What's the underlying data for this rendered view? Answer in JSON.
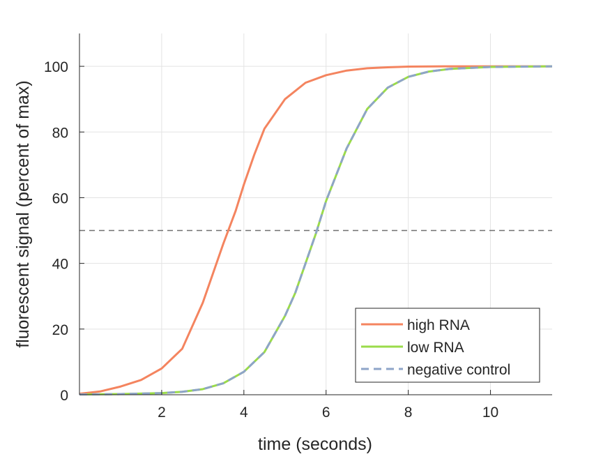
{
  "chart_data": {
    "type": "line",
    "xlabel": "time (seconds)",
    "ylabel": "fluorescent signal (percent of max)",
    "xlim": [
      0,
      11.5
    ],
    "ylim": [
      0,
      110
    ],
    "xticks": [
      2,
      4,
      6,
      8,
      10
    ],
    "yticks": [
      0,
      20,
      40,
      60,
      80,
      100
    ],
    "grid": true,
    "legend_position": "bottom-right",
    "threshold": {
      "y": 50,
      "color": "#707070",
      "style": "dashed"
    },
    "series": [
      {
        "name": "high RNA",
        "color": "#F4845F",
        "style": "solid",
        "x": [
          0,
          0.5,
          1,
          1.5,
          2,
          2.5,
          3,
          3.25,
          3.5,
          3.65,
          3.8,
          4,
          4.25,
          4.5,
          5,
          5.5,
          6,
          6.5,
          7,
          7.5,
          8,
          9,
          10,
          11.5
        ],
        "y": [
          0.3,
          1.0,
          2.5,
          4.5,
          8,
          14,
          28,
          37,
          46,
          51,
          56,
          64,
          73,
          81,
          90,
          95,
          97.3,
          98.7,
          99.4,
          99.7,
          99.9,
          100,
          100,
          100
        ]
      },
      {
        "name": "low RNA",
        "color": "#9ADB4A",
        "style": "solid",
        "x": [
          0,
          1,
          2,
          2.5,
          3,
          3.5,
          4,
          4.5,
          5,
          5.25,
          5.5,
          5.75,
          6,
          6.25,
          6.5,
          7,
          7.5,
          8,
          8.5,
          9,
          10,
          11.5
        ],
        "y": [
          0.1,
          0.2,
          0.5,
          0.9,
          1.7,
          3.5,
          7,
          13,
          24,
          31,
          40,
          49,
          59,
          67,
          75,
          87,
          93.5,
          96.8,
          98.4,
          99.2,
          99.8,
          100
        ]
      },
      {
        "name": "negative control",
        "color": "#8EA4C8",
        "style": "dashed",
        "x": [
          0,
          1,
          2,
          2.5,
          3,
          3.5,
          4,
          4.5,
          5,
          5.25,
          5.5,
          5.75,
          6,
          6.25,
          6.5,
          7,
          7.5,
          8,
          8.5,
          9,
          10,
          11.5
        ],
        "y": [
          0.1,
          0.2,
          0.5,
          0.9,
          1.7,
          3.5,
          7,
          13,
          24,
          31,
          40,
          49,
          59,
          67,
          75,
          87,
          93.5,
          96.8,
          98.4,
          99.2,
          99.8,
          100
        ]
      }
    ]
  }
}
